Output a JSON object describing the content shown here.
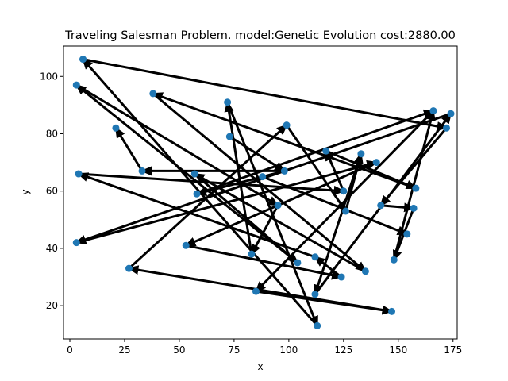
{
  "chart_data": {
    "type": "scatter",
    "title": "Traveling Salesman Problem. model:Genetic Evolution  cost:2880.00",
    "xlabel": "x",
    "ylabel": "y",
    "xlim": [
      -2.9,
      176.9
    ],
    "ylim": [
      8.4,
      110.6
    ],
    "xticks": [
      0,
      25,
      50,
      75,
      100,
      125,
      150,
      175
    ],
    "yticks": [
      20,
      40,
      60,
      80,
      100
    ],
    "grid": false,
    "point_color": "#1f77b4",
    "arrow_color": "#000000",
    "points": [
      [
        6,
        106
      ],
      [
        3,
        97
      ],
      [
        38,
        94
      ],
      [
        72,
        91
      ],
      [
        99,
        83
      ],
      [
        21,
        82
      ],
      [
        73,
        79
      ],
      [
        117,
        74
      ],
      [
        133,
        73
      ],
      [
        140,
        70
      ],
      [
        166,
        88
      ],
      [
        174,
        87
      ],
      [
        172,
        82
      ],
      [
        4,
        66
      ],
      [
        33,
        67
      ],
      [
        57,
        66
      ],
      [
        88,
        65
      ],
      [
        98,
        67
      ],
      [
        58,
        59
      ],
      [
        125,
        60
      ],
      [
        126,
        53
      ],
      [
        142,
        55
      ],
      [
        158,
        61
      ],
      [
        157,
        54
      ],
      [
        3,
        42
      ],
      [
        95,
        55
      ],
      [
        53,
        41
      ],
      [
        83,
        38
      ],
      [
        104,
        35
      ],
      [
        112,
        37
      ],
      [
        124,
        30
      ],
      [
        135,
        32
      ],
      [
        154,
        45
      ],
      [
        148,
        36
      ],
      [
        27,
        33
      ],
      [
        85,
        25
      ],
      [
        112,
        24
      ],
      [
        147,
        18
      ],
      [
        113,
        13
      ]
    ],
    "route": [
      [
        [
          6,
          106
        ],
        [
          172,
          82
        ]
      ],
      [
        [
          172,
          82
        ],
        [
          142,
          55
        ]
      ],
      [
        [
          142,
          55
        ],
        [
          157,
          54
        ]
      ],
      [
        [
          157,
          54
        ],
        [
          148,
          36
        ]
      ],
      [
        [
          148,
          36
        ],
        [
          166,
          88
        ]
      ],
      [
        [
          166,
          88
        ],
        [
          85,
          25
        ]
      ],
      [
        [
          85,
          25
        ],
        [
          147,
          18
        ]
      ],
      [
        [
          147,
          18
        ],
        [
          27,
          33
        ]
      ],
      [
        [
          27,
          33
        ],
        [
          99,
          83
        ]
      ],
      [
        [
          99,
          83
        ],
        [
          126,
          53
        ]
      ],
      [
        [
          126,
          53
        ],
        [
          133,
          73
        ]
      ],
      [
        [
          133,
          73
        ],
        [
          112,
          24
        ]
      ],
      [
        [
          112,
          24
        ],
        [
          174,
          87
        ]
      ],
      [
        [
          174,
          87
        ],
        [
          3,
          42
        ]
      ],
      [
        [
          3,
          42
        ],
        [
          140,
          70
        ]
      ],
      [
        [
          140,
          70
        ],
        [
          53,
          41
        ]
      ],
      [
        [
          53,
          41
        ],
        [
          124,
          30
        ]
      ],
      [
        [
          124,
          30
        ],
        [
          112,
          37
        ]
      ],
      [
        [
          112,
          37
        ],
        [
          4,
          66
        ]
      ],
      [
        [
          4,
          66
        ],
        [
          125,
          60
        ]
      ],
      [
        [
          125,
          60
        ],
        [
          117,
          74
        ]
      ],
      [
        [
          117,
          74
        ],
        [
          158,
          61
        ]
      ],
      [
        [
          158,
          61
        ],
        [
          38,
          94
        ]
      ],
      [
        [
          38,
          94
        ],
        [
          135,
          32
        ]
      ],
      [
        [
          135,
          32
        ],
        [
          57,
          66
        ]
      ],
      [
        [
          57,
          66
        ],
        [
          104,
          35
        ]
      ],
      [
        [
          104,
          35
        ],
        [
          3,
          97
        ]
      ],
      [
        [
          3,
          97
        ],
        [
          95,
          55
        ]
      ],
      [
        [
          95,
          55
        ],
        [
          83,
          38
        ]
      ],
      [
        [
          83,
          38
        ],
        [
          72,
          91
        ]
      ],
      [
        [
          72,
          91
        ],
        [
          113,
          13
        ]
      ],
      [
        [
          113,
          13
        ],
        [
          6,
          106
        ]
      ],
      [
        [
          73,
          79
        ],
        [
          98,
          67
        ]
      ],
      [
        [
          98,
          67
        ],
        [
          58,
          59
        ]
      ],
      [
        [
          58,
          59
        ],
        [
          166,
          88
        ]
      ],
      [
        [
          98,
          67
        ],
        [
          33,
          67
        ]
      ],
      [
        [
          33,
          67
        ],
        [
          21,
          82
        ]
      ],
      [
        [
          88,
          65
        ],
        [
          154,
          45
        ]
      ]
    ]
  }
}
